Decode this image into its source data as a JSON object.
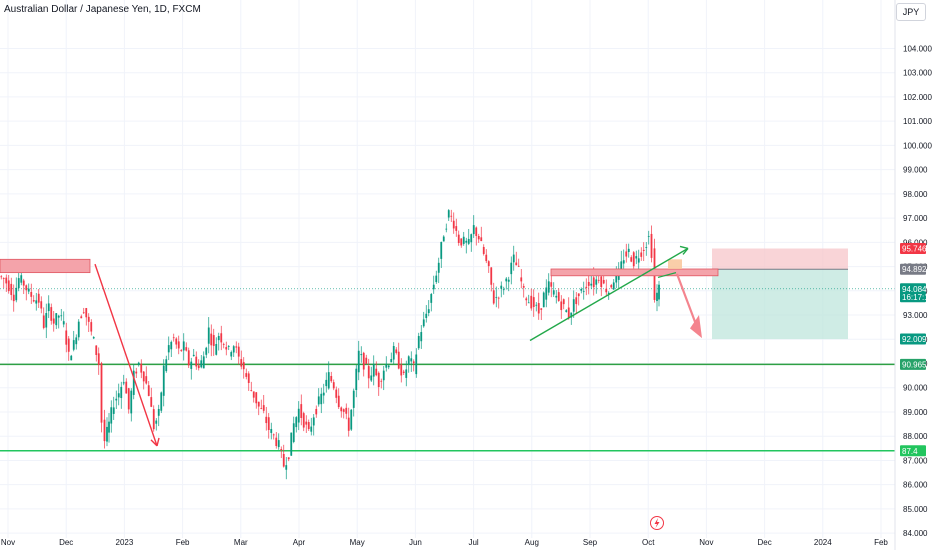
{
  "chart_data": {
    "type": "candlestick",
    "title": "Australian Dollar / Japanese Yen, 1D, FXCM",
    "currency": "JPY",
    "ylim": [
      83.8,
      106.0
    ],
    "y_ticks": [
      "84.000",
      "85.000",
      "86.000",
      "87.000",
      "88.000",
      "89.000",
      "90.000",
      "91.000",
      "92.000",
      "93.000",
      "94.000",
      "95.000",
      "96.000",
      "97.000",
      "98.000",
      "99.000",
      "100.000",
      "101.000",
      "102.000",
      "103.000",
      "104.000"
    ],
    "x_ticks": [
      "Nov",
      "Dec",
      "2023",
      "Feb",
      "Mar",
      "Apr",
      "May",
      "Jun",
      "Jul",
      "Aug",
      "Sep",
      "Oct",
      "Nov",
      "Dec",
      "2024",
      "Feb"
    ],
    "price_badges": [
      {
        "label": "95.746",
        "value": 95.746,
        "color": "#f23645"
      },
      {
        "label": "94.892",
        "value": 94.892,
        "color": "#787b86"
      },
      {
        "label": "94.084",
        "sub": "16:17:14",
        "value": 94.084,
        "color": "#089981"
      },
      {
        "label": "92.009",
        "value": 92.009,
        "color": "#089981"
      },
      {
        "label": "90.965",
        "value": 90.965,
        "color": "#26a269"
      },
      {
        "label": "87.4",
        "value": 87.4,
        "color": "#22c55e"
      }
    ],
    "horizontal_levels": [
      {
        "value": 90.965,
        "color": "#2ea043"
      },
      {
        "value": 87.4,
        "color": "#22c55e"
      }
    ],
    "position": {
      "entry": 94.892,
      "stop": 95.746,
      "target": 92.009
    },
    "series": [
      {
        "name": "AUDJPY",
        "points": [
          [
            0,
            94.6
          ],
          [
            5,
            94.5
          ],
          [
            10,
            94.2
          ],
          [
            15,
            93.8
          ],
          [
            20,
            94.5
          ],
          [
            25,
            94.3
          ],
          [
            30,
            93.9
          ],
          [
            35,
            93.7
          ],
          [
            40,
            93.6
          ],
          [
            45,
            92.6
          ],
          [
            50,
            93.3
          ],
          [
            55,
            92.7
          ],
          [
            60,
            93.0
          ],
          [
            65,
            92.6
          ],
          [
            70,
            91.3
          ],
          [
            75,
            91.8
          ],
          [
            80,
            92.8
          ],
          [
            85,
            93.3
          ],
          [
            90,
            92.6
          ],
          [
            95,
            91.9
          ],
          [
            100,
            91.0
          ],
          [
            103,
            88.6
          ],
          [
            106,
            87.8
          ],
          [
            110,
            88.5
          ],
          [
            115,
            89.4
          ],
          [
            120,
            89.8
          ],
          [
            125,
            90.4
          ],
          [
            130,
            89.1
          ],
          [
            135,
            90.5
          ],
          [
            140,
            91.0
          ],
          [
            145,
            90.5
          ],
          [
            150,
            89.8
          ],
          [
            155,
            88.4
          ],
          [
            160,
            88.9
          ],
          [
            165,
            90.8
          ],
          [
            170,
            91.7
          ],
          [
            175,
            92.0
          ],
          [
            180,
            91.5
          ],
          [
            185,
            91.7
          ],
          [
            190,
            91.0
          ],
          [
            195,
            91.3
          ],
          [
            200,
            90.8
          ],
          [
            205,
            91.3
          ],
          [
            210,
            92.4
          ],
          [
            215,
            91.6
          ],
          [
            220,
            92.2
          ],
          [
            225,
            91.9
          ],
          [
            230,
            91.5
          ],
          [
            235,
            91.8
          ],
          [
            240,
            91.2
          ],
          [
            245,
            90.8
          ],
          [
            250,
            90.1
          ],
          [
            255,
            89.7
          ],
          [
            260,
            89.2
          ],
          [
            265,
            88.9
          ],
          [
            270,
            88.3
          ],
          [
            275,
            88.0
          ],
          [
            280,
            87.6
          ],
          [
            285,
            86.8
          ],
          [
            290,
            87.3
          ],
          [
            295,
            88.5
          ],
          [
            300,
            89.1
          ],
          [
            305,
            88.6
          ],
          [
            310,
            88.1
          ],
          [
            315,
            88.9
          ],
          [
            320,
            89.4
          ],
          [
            325,
            89.9
          ],
          [
            330,
            90.5
          ],
          [
            335,
            90.1
          ],
          [
            340,
            89.4
          ],
          [
            345,
            89.0
          ],
          [
            350,
            88.4
          ],
          [
            355,
            89.8
          ],
          [
            360,
            91.4
          ],
          [
            365,
            91.0
          ],
          [
            370,
            90.5
          ],
          [
            375,
            90.8
          ],
          [
            380,
            90.2
          ],
          [
            385,
            90.8
          ],
          [
            390,
            91.1
          ],
          [
            395,
            91.5
          ],
          [
            400,
            91.0
          ],
          [
            405,
            90.4
          ],
          [
            410,
            91.2
          ],
          [
            415,
            90.8
          ],
          [
            420,
            92.1
          ],
          [
            425,
            92.7
          ],
          [
            430,
            93.4
          ],
          [
            435,
            94.3
          ],
          [
            440,
            95.2
          ],
          [
            445,
            96.4
          ],
          [
            450,
            97.2
          ],
          [
            455,
            96.8
          ],
          [
            460,
            96.1
          ],
          [
            465,
            96.0
          ],
          [
            470,
            95.9
          ],
          [
            475,
            96.6
          ],
          [
            480,
            96.2
          ],
          [
            485,
            95.5
          ],
          [
            490,
            94.8
          ],
          [
            495,
            93.6
          ],
          [
            500,
            93.9
          ],
          [
            505,
            94.2
          ],
          [
            510,
            94.7
          ],
          [
            515,
            95.3
          ],
          [
            520,
            94.8
          ],
          [
            525,
            93.9
          ],
          [
            530,
            93.6
          ],
          [
            535,
            93.4
          ],
          [
            540,
            93.1
          ],
          [
            545,
            93.8
          ],
          [
            550,
            94.2
          ],
          [
            555,
            93.9
          ],
          [
            560,
            93.6
          ],
          [
            565,
            93.3
          ],
          [
            570,
            93.0
          ],
          [
            575,
            93.5
          ],
          [
            580,
            93.8
          ],
          [
            585,
            94.1
          ],
          [
            590,
            94.4
          ],
          [
            595,
            94.3
          ],
          [
            600,
            94.6
          ],
          [
            605,
            94.2
          ],
          [
            610,
            94.0
          ],
          [
            615,
            94.5
          ],
          [
            620,
            94.7
          ],
          [
            625,
            95.4
          ],
          [
            630,
            95.6
          ],
          [
            635,
            95.2
          ],
          [
            640,
            95.5
          ],
          [
            645,
            95.8
          ],
          [
            650,
            96.2
          ],
          [
            653,
            95.6
          ],
          [
            656,
            93.6
          ],
          [
            660,
            94.1
          ]
        ]
      }
    ]
  }
}
